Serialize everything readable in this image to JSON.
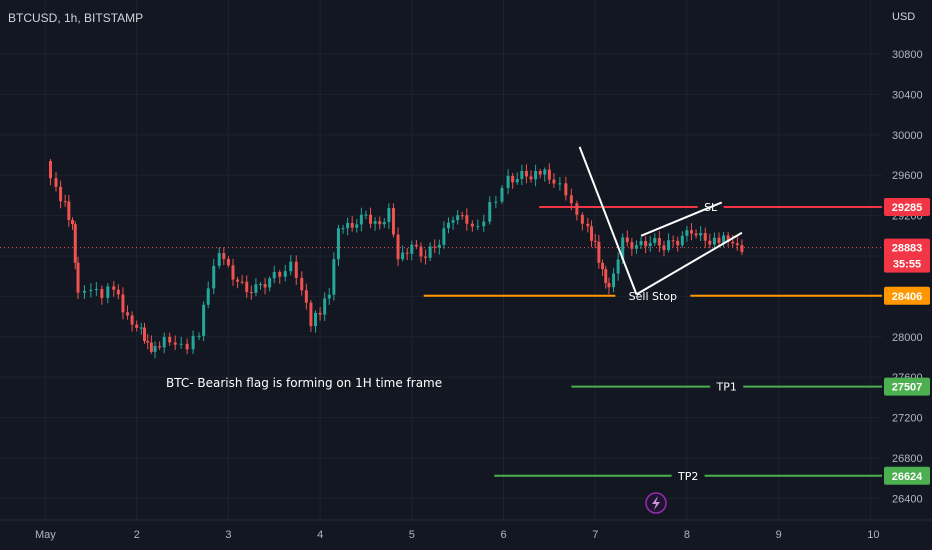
{
  "header": {
    "symbol": "BTCUSD, 1h, BITSTAMP",
    "currency": "USD"
  },
  "chart_data": {
    "type": "candlestick",
    "ylim": [
      26250,
      31250
    ],
    "y_ticks": [
      30800,
      30400,
      30000,
      29600,
      29200,
      28800,
      28400,
      28000,
      27600,
      27200,
      26800,
      26400
    ],
    "x_labels": [
      "May",
      "2",
      "3",
      "4",
      "5",
      "6",
      "7",
      "8",
      "9",
      "10"
    ],
    "x_range": [
      0,
      10.1
    ],
    "annotation": "BTC- Bearish flag is forming on 1H time frame",
    "current_price": {
      "value": "28883",
      "countdown": "35:55",
      "price": 28883
    },
    "levels": [
      {
        "label": "SL",
        "value": "29285",
        "price": 29285,
        "color": "#f23645",
        "x_from": 5.39,
        "x_to": 10.1
      },
      {
        "label": "Sell Stop",
        "value": "28406",
        "price": 28406,
        "color": "#ff9800",
        "x_from": 4.13,
        "x_to": 10.1
      },
      {
        "label": "TP1",
        "value": "27507",
        "price": 27507,
        "color": "#4caf50",
        "x_from": 5.74,
        "x_to": 10.1
      },
      {
        "label": "TP2",
        "value": "26624",
        "price": 26624,
        "color": "#4caf50",
        "x_from": 4.9,
        "x_to": 10.1
      }
    ],
    "pattern_lines": [
      {
        "x1": 5.83,
        "y1": 29880,
        "x2": 6.45,
        "y2": 28420
      },
      {
        "x1": 6.45,
        "y1": 28420,
        "x2": 7.6,
        "y2": 29030
      },
      {
        "x1": 6.5,
        "y1": 29000,
        "x2": 7.38,
        "y2": 29330
      }
    ],
    "series": [
      {
        "x": 0.0,
        "close": 29700
      },
      {
        "x": 0.12,
        "close": 29440
      },
      {
        "x": 0.22,
        "close": 29300
      },
      {
        "x": 0.3,
        "close": 29100
      },
      {
        "x": 0.36,
        "close": 28450
      },
      {
        "x": 0.5,
        "close": 28500
      },
      {
        "x": 0.62,
        "close": 28430
      },
      {
        "x": 0.75,
        "close": 28500
      },
      {
        "x": 0.85,
        "close": 28250
      },
      {
        "x": 0.95,
        "close": 28100
      },
      {
        "x": 1.05,
        "close": 28050
      },
      {
        "x": 1.12,
        "close": 27900
      },
      {
        "x": 1.2,
        "close": 27880
      },
      {
        "x": 1.3,
        "close": 28000
      },
      {
        "x": 1.42,
        "close": 27950
      },
      {
        "x": 1.55,
        "close": 27920
      },
      {
        "x": 1.68,
        "close": 28050
      },
      {
        "x": 1.78,
        "close": 28500
      },
      {
        "x": 1.9,
        "close": 28820
      },
      {
        "x": 2.05,
        "close": 28600
      },
      {
        "x": 2.2,
        "close": 28450
      },
      {
        "x": 2.35,
        "close": 28500
      },
      {
        "x": 2.5,
        "close": 28600
      },
      {
        "x": 2.68,
        "close": 28700
      },
      {
        "x": 2.8,
        "close": 28500
      },
      {
        "x": 2.9,
        "close": 28150
      },
      {
        "x": 3.0,
        "close": 28250
      },
      {
        "x": 3.1,
        "close": 28420
      },
      {
        "x": 3.2,
        "close": 29050
      },
      {
        "x": 3.35,
        "close": 29100
      },
      {
        "x": 3.5,
        "close": 29200
      },
      {
        "x": 3.65,
        "close": 29080
      },
      {
        "x": 3.75,
        "close": 29280
      },
      {
        "x": 3.85,
        "close": 28800
      },
      {
        "x": 4.0,
        "close": 28900
      },
      {
        "x": 4.15,
        "close": 28800
      },
      {
        "x": 4.3,
        "close": 28950
      },
      {
        "x": 4.45,
        "close": 29200
      },
      {
        "x": 4.6,
        "close": 29150
      },
      {
        "x": 4.72,
        "close": 29050
      },
      {
        "x": 4.85,
        "close": 29300
      },
      {
        "x": 5.05,
        "close": 29550
      },
      {
        "x": 5.2,
        "close": 29600
      },
      {
        "x": 5.3,
        "close": 29600
      },
      {
        "x": 5.4,
        "close": 29650
      },
      {
        "x": 5.55,
        "close": 29550
      },
      {
        "x": 5.68,
        "close": 29400
      },
      {
        "x": 5.8,
        "close": 29180
      },
      {
        "x": 5.92,
        "close": 29050
      },
      {
        "x": 6.0,
        "close": 28900
      },
      {
        "x": 6.08,
        "close": 28650
      },
      {
        "x": 6.15,
        "close": 28500
      },
      {
        "x": 6.3,
        "close": 28950
      },
      {
        "x": 6.45,
        "close": 28900
      },
      {
        "x": 6.6,
        "close": 28950
      },
      {
        "x": 6.75,
        "close": 28900
      },
      {
        "x": 6.9,
        "close": 28950
      },
      {
        "x": 7.05,
        "close": 29050
      },
      {
        "x": 7.2,
        "close": 28950
      },
      {
        "x": 7.3,
        "close": 28950
      },
      {
        "x": 7.4,
        "close": 29000
      },
      {
        "x": 7.5,
        "close": 28950
      },
      {
        "x": 7.6,
        "close": 28883
      }
    ]
  },
  "footer": {
    "bolt_icon": "lightning-bolt-icon"
  }
}
